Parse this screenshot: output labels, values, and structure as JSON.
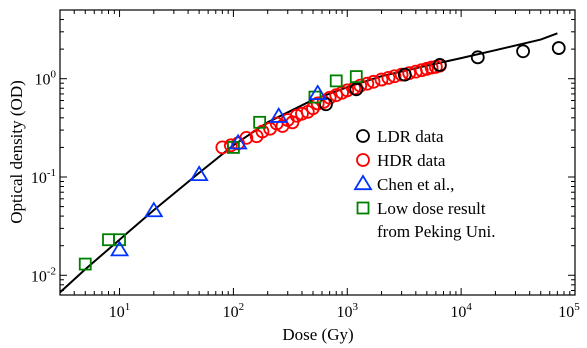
{
  "chart_data": {
    "type": "scatter",
    "xlabel": "Dose (Gy)",
    "ylabel": "Optical density (OD)",
    "xscale": "log",
    "yscale": "log",
    "xlim": [
      3,
      100000
    ],
    "ylim": [
      0.0063,
      5
    ],
    "x_ticks": [
      {
        "value": 10,
        "base": "10",
        "exp": "1"
      },
      {
        "value": 100,
        "base": "10",
        "exp": "2"
      },
      {
        "value": 1000,
        "base": "10",
        "exp": "3"
      },
      {
        "value": 10000,
        "base": "10",
        "exp": "4"
      },
      {
        "value": 100000,
        "base": "10",
        "exp": "5"
      }
    ],
    "y_ticks": [
      {
        "value": 0.01,
        "base": "10",
        "exp": "-2"
      },
      {
        "value": 0.1,
        "base": "10",
        "exp": "-1"
      },
      {
        "value": 1,
        "base": "10",
        "exp": "0"
      }
    ],
    "grid": false,
    "legend_position": "right",
    "fit_curve": {
      "x": [
        3,
        5,
        10,
        20,
        50,
        100,
        200,
        500,
        1000,
        2000,
        5000,
        10000,
        20000,
        50000,
        70000
      ],
      "y": [
        0.0067,
        0.0115,
        0.023,
        0.046,
        0.11,
        0.21,
        0.36,
        0.61,
        0.82,
        1.06,
        1.36,
        1.62,
        1.95,
        2.5,
        2.9
      ],
      "color": "#000000"
    },
    "series": [
      {
        "name": "LDR data",
        "marker": "circle",
        "color": "#000000",
        "x": [
          650,
          1200,
          3200,
          6500,
          14000,
          35000,
          72000
        ],
        "y": [
          0.55,
          0.78,
          1.1,
          1.38,
          1.65,
          1.9,
          2.05
        ]
      },
      {
        "name": "HDR data",
        "marker": "circle",
        "color": "#ff0000",
        "x": [
          80,
          95,
          110,
          130,
          160,
          180,
          210,
          240,
          270,
          300,
          330,
          360,
          400,
          450,
          500,
          550,
          620,
          700,
          800,
          900,
          1000,
          1150,
          1300,
          1500,
          1700,
          2000,
          2300,
          2600,
          3000,
          3500,
          4000,
          4500,
          5000,
          5500,
          6000,
          6500
        ],
        "y": [
          0.2,
          0.21,
          0.22,
          0.25,
          0.26,
          0.29,
          0.31,
          0.35,
          0.33,
          0.38,
          0.36,
          0.42,
          0.44,
          0.46,
          0.5,
          0.56,
          0.58,
          0.64,
          0.68,
          0.72,
          0.76,
          0.8,
          0.85,
          0.89,
          0.93,
          0.98,
          1.02,
          1.06,
          1.1,
          1.14,
          1.18,
          1.22,
          1.26,
          1.3,
          1.32,
          1.36
        ]
      },
      {
        "name": "Chen et al.,",
        "marker": "triangle",
        "color": "#0033ff",
        "x": [
          10,
          20,
          50,
          110,
          250,
          550
        ],
        "y": [
          0.018,
          0.045,
          0.105,
          0.22,
          0.41,
          0.7
        ]
      },
      {
        "name": "Low dose result",
        "name2": "from Peking Uni.",
        "marker": "square",
        "color": "#008000",
        "x": [
          5,
          8,
          10,
          100,
          170,
          520,
          800,
          1200
        ],
        "y": [
          0.013,
          0.023,
          0.023,
          0.2,
          0.36,
          0.65,
          0.95,
          1.05
        ]
      }
    ]
  }
}
